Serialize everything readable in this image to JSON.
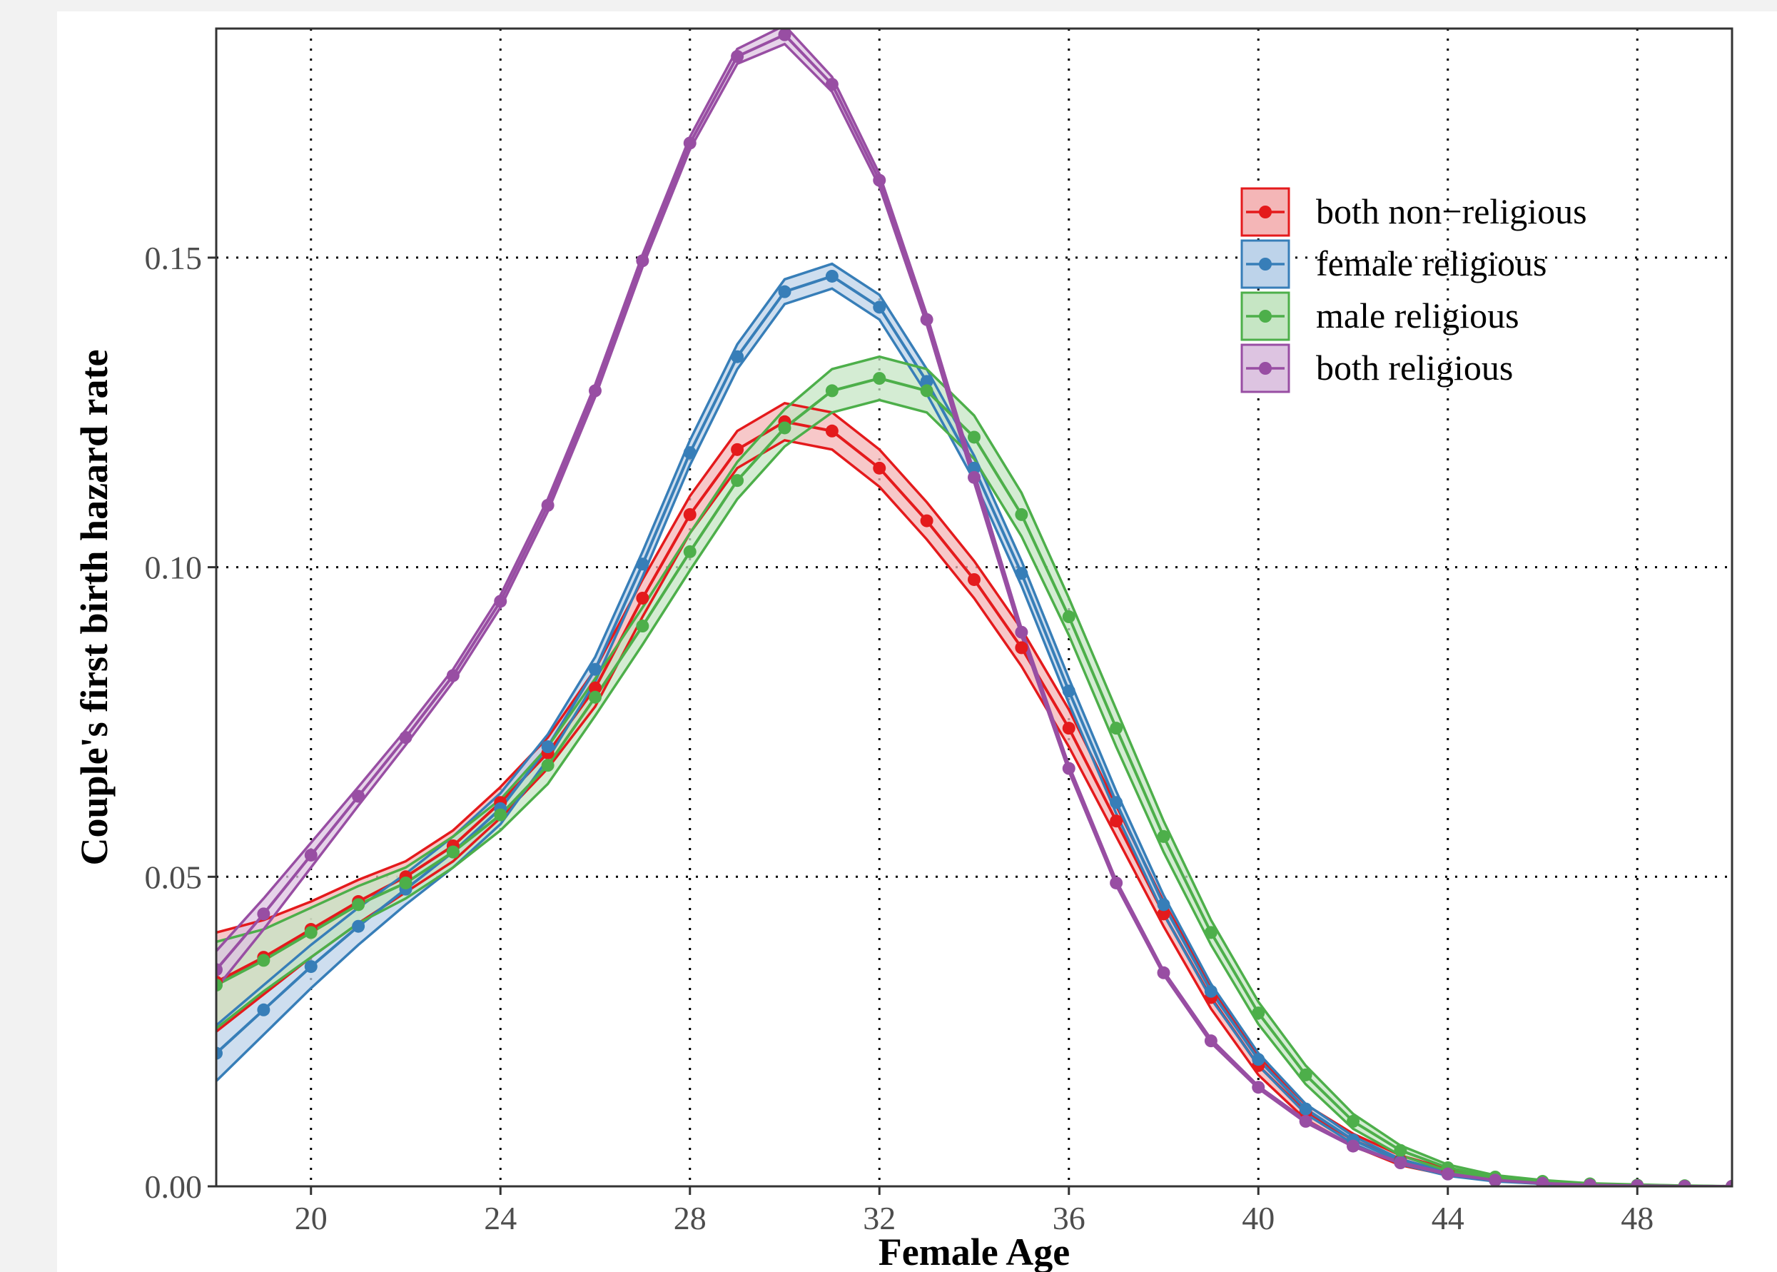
{
  "chart_data": {
    "type": "line",
    "title": "",
    "xlabel": "Female Age",
    "ylabel": "Couple's first birth hazard rate",
    "xlim": [
      18,
      50
    ],
    "ylim": [
      0,
      0.187
    ],
    "x_ticks": [
      20,
      24,
      28,
      32,
      36,
      40,
      44,
      48
    ],
    "y_ticks": [
      0.0,
      0.05,
      0.1,
      0.15
    ],
    "y_tick_labels": [
      "0.00",
      "0.05",
      "0.10",
      "0.15"
    ],
    "grid": "dotted major gridlines",
    "legend_position": "top-right",
    "x": [
      18,
      19,
      20,
      21,
      22,
      23,
      24,
      25,
      26,
      27,
      28,
      29,
      30,
      31,
      32,
      33,
      34,
      35,
      36,
      37,
      38,
      39,
      40,
      41,
      42,
      43,
      44,
      45,
      46,
      47,
      48,
      49,
      50
    ],
    "series": [
      {
        "name": "both non−religious",
        "color": "#e41a1c",
        "fill": "#f4b6b7",
        "values": [
          0.033,
          0.037,
          0.0415,
          0.046,
          0.05,
          0.055,
          0.062,
          0.07,
          0.0805,
          0.095,
          0.1085,
          0.119,
          0.1235,
          0.122,
          0.116,
          0.1075,
          0.098,
          0.087,
          0.074,
          0.059,
          0.044,
          0.0305,
          0.0195,
          0.012,
          0.0075,
          0.0042,
          0.0023,
          0.0012,
          0.0006,
          0.0003,
          0.0001,
          0.0,
          0.0
        ],
        "band": [
          0.008,
          0.006,
          0.0045,
          0.0035,
          0.0025,
          0.0025,
          0.0025,
          0.0025,
          0.003,
          0.003,
          0.003,
          0.003,
          0.003,
          0.003,
          0.003,
          0.003,
          0.003,
          0.003,
          0.003,
          0.0025,
          0.002,
          0.0018,
          0.0015,
          0.0012,
          0.001,
          0.0008,
          0.0005,
          0.0003,
          0.0002,
          0.0001,
          0.0001,
          0.0,
          0.0
        ]
      },
      {
        "name": "female religious",
        "color": "#377eb8",
        "fill": "#bdd3ea",
        "values": [
          0.0215,
          0.0285,
          0.0355,
          0.042,
          0.048,
          0.054,
          0.061,
          0.071,
          0.0835,
          0.1005,
          0.1185,
          0.134,
          0.1445,
          0.147,
          0.142,
          0.13,
          0.116,
          0.099,
          0.08,
          0.062,
          0.0455,
          0.0315,
          0.0205,
          0.0125,
          0.0075,
          0.004,
          0.002,
          0.001,
          0.0005,
          0.0002,
          0.0001,
          0.0,
          0.0
        ],
        "band": [
          0.0045,
          0.004,
          0.0035,
          0.003,
          0.0025,
          0.0025,
          0.0025,
          0.002,
          0.002,
          0.002,
          0.002,
          0.002,
          0.002,
          0.002,
          0.002,
          0.002,
          0.002,
          0.002,
          0.002,
          0.0018,
          0.0015,
          0.0012,
          0.001,
          0.0008,
          0.0006,
          0.0004,
          0.0003,
          0.0002,
          0.0001,
          0.0001,
          0.0,
          0.0,
          0.0
        ]
      },
      {
        "name": "male religious",
        "color": "#4daf4a",
        "fill": "#c6e6c4",
        "values": [
          0.0325,
          0.0365,
          0.041,
          0.0455,
          0.049,
          0.054,
          0.06,
          0.068,
          0.079,
          0.0905,
          0.1025,
          0.114,
          0.1225,
          0.1285,
          0.1305,
          0.1285,
          0.121,
          0.1085,
          0.092,
          0.074,
          0.0565,
          0.041,
          0.028,
          0.018,
          0.0105,
          0.0058,
          0.003,
          0.0015,
          0.0008,
          0.0004,
          0.0002,
          0.0001,
          0.0
        ],
        "band": [
          0.007,
          0.005,
          0.004,
          0.003,
          0.0025,
          0.0025,
          0.0025,
          0.003,
          0.003,
          0.003,
          0.003,
          0.003,
          0.003,
          0.0035,
          0.0035,
          0.0035,
          0.0035,
          0.0035,
          0.003,
          0.003,
          0.0025,
          0.002,
          0.0018,
          0.0015,
          0.0012,
          0.0008,
          0.0005,
          0.0003,
          0.0002,
          0.0001,
          0.0001,
          0.0,
          0.0
        ]
      },
      {
        "name": "both religious",
        "color": "#984ea3",
        "fill": "#ddc4e1",
        "values": [
          0.035,
          0.044,
          0.0535,
          0.063,
          0.0725,
          0.0825,
          0.0945,
          0.11,
          0.1285,
          0.1495,
          0.1685,
          0.1825,
          0.186,
          0.178,
          0.1625,
          0.14,
          0.1145,
          0.0895,
          0.0675,
          0.049,
          0.0345,
          0.0235,
          0.016,
          0.0105,
          0.0065,
          0.0038,
          0.002,
          0.001,
          0.0005,
          0.0002,
          0.0001,
          0.0,
          0.0
        ],
        "band": [
          0.003,
          0.0025,
          0.002,
          0.0015,
          0.0012,
          0.001,
          0.001,
          0.001,
          0.001,
          0.001,
          0.001,
          0.0012,
          0.0015,
          0.0012,
          0.001,
          0.0008,
          0.0008,
          0.0006,
          0.0005,
          0.0004,
          0.0003,
          0.0003,
          0.0002,
          0.0002,
          0.0001,
          0.0001,
          0.0001,
          0.0,
          0.0,
          0.0,
          0.0,
          0.0,
          0.0
        ]
      }
    ]
  }
}
